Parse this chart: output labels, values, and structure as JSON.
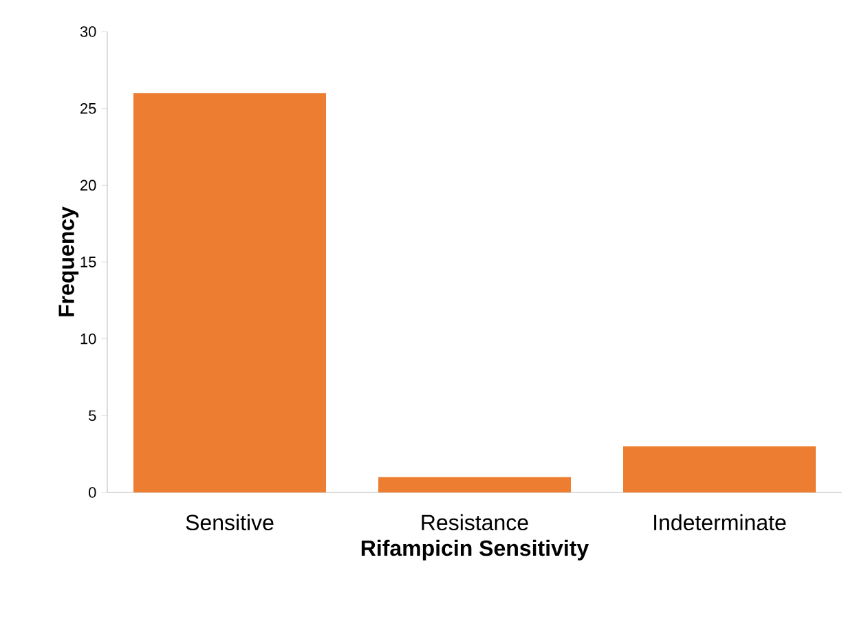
{
  "chart_data": {
    "type": "bar",
    "xlabel": "Rifampicin Sensitivity",
    "ylabel": "Frequency",
    "categories": [
      "Sensitive",
      "Resistance",
      "Indeterminate"
    ],
    "values": [
      26,
      1,
      3
    ],
    "color": "#ed7d31",
    "ylim": [
      0,
      30
    ],
    "yticks": [
      0,
      5,
      10,
      15,
      20,
      25,
      30
    ],
    "grid": false
  }
}
